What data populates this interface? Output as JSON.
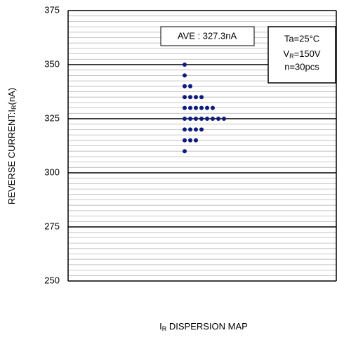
{
  "chart_data": {
    "type": "dotplot",
    "y_label": {
      "text": "REVERSE CURRENT:I",
      "sub": "R",
      "suffix": "(nA)"
    },
    "x_label": {
      "text": "I",
      "sub": "R",
      "suffix": " DISPERSION MAP"
    },
    "average_label": "AVE : 327.3nA",
    "conditions": {
      "ta": "Ta=25°C",
      "vr": {
        "text": "V",
        "sub": "R",
        "suffix": "=150V"
      },
      "n": "n=30pcs"
    },
    "values": [
      350,
      345,
      340,
      340,
      335,
      335,
      335,
      335,
      330,
      330,
      330,
      330,
      330,
      330,
      325,
      325,
      325,
      325,
      325,
      325,
      325,
      325,
      320,
      320,
      320,
      320,
      315,
      315,
      315,
      310
    ],
    "color": "#0d1a80",
    "ylim": [
      250,
      375
    ],
    "yticks": [
      250,
      275,
      300,
      325,
      350,
      375
    ],
    "minor_grid_step": 2.5,
    "grid": true
  }
}
